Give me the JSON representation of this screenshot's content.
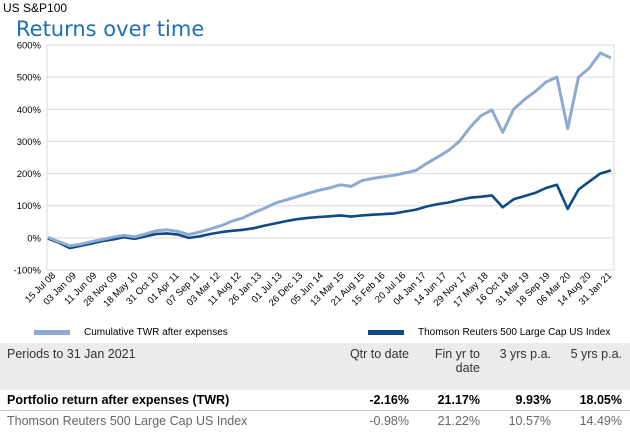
{
  "header": {
    "supertitle": "US S&P100",
    "title": "Returns over time"
  },
  "chart_data": {
    "type": "line",
    "y_ticks": [
      "600%",
      "500%",
      "400%",
      "300%",
      "200%",
      "100%",
      "0%",
      "-100%"
    ],
    "y_tick_values": [
      600,
      500,
      400,
      300,
      200,
      100,
      0,
      -100
    ],
    "ylim": [
      -100,
      600
    ],
    "grid": true,
    "legend_position": "bottom",
    "x_tick_labels": [
      "15 Jul 08",
      "03 Jan 09",
      "11 Jun 09",
      "28 Nov 09",
      "18 May 10",
      "31 Oct 10",
      "01 Apr 11",
      "07 Sep 11",
      "03 Mar 12",
      "11 Aug 12",
      "26 Jan 13",
      "01 Jul 13",
      "26 Dec 13",
      "05 Jun 14",
      "13 Mar 15",
      "21 Aug 15",
      "15 Feb 16",
      "20 Jul 16",
      "04 Jan 17",
      "14 Jun 17",
      "29 Nov 17",
      "17 May 18",
      "16 Oct 18",
      "31 Mar 19",
      "18 Sep 19",
      "06 Mar 20",
      "14 Aug 20",
      "31 Jan 21"
    ],
    "x": [
      "2008-07",
      "2008-10",
      "2009-01",
      "2009-03",
      "2009-06",
      "2009-09",
      "2009-12",
      "2010-03",
      "2010-06",
      "2010-09",
      "2010-12",
      "2011-03",
      "2011-06",
      "2011-09",
      "2011-12",
      "2012-03",
      "2012-06",
      "2012-09",
      "2012-12",
      "2013-03",
      "2013-06",
      "2013-09",
      "2013-12",
      "2014-03",
      "2014-06",
      "2014-09",
      "2014-12",
      "2015-03",
      "2015-06",
      "2015-09",
      "2015-12",
      "2016-03",
      "2016-06",
      "2016-09",
      "2016-12",
      "2017-03",
      "2017-06",
      "2017-09",
      "2017-12",
      "2018-03",
      "2018-06",
      "2018-09",
      "2018-12",
      "2019-03",
      "2019-06",
      "2019-09",
      "2019-12",
      "2020-02",
      "2020-03",
      "2020-06",
      "2020-09",
      "2020-12",
      "2021-01"
    ],
    "series": [
      {
        "name": "Cumulative TWR after expenses",
        "color": "#8eaad2",
        "values": [
          2,
          -12,
          -25,
          -20,
          -12,
          -5,
          2,
          8,
          3,
          12,
          22,
          25,
          20,
          10,
          18,
          28,
          38,
          52,
          62,
          78,
          92,
          108,
          118,
          128,
          138,
          148,
          155,
          165,
          160,
          178,
          185,
          190,
          195,
          202,
          210,
          232,
          252,
          272,
          300,
          345,
          380,
          398,
          328,
          400,
          430,
          455,
          485,
          500,
          340,
          500,
          528,
          575,
          560
        ]
      },
      {
        "name": "Thomson Reuters 500 Large Cap US Index",
        "color": "#0d4a86",
        "values": [
          -2,
          -15,
          -32,
          -25,
          -18,
          -10,
          -5,
          2,
          -3,
          5,
          12,
          14,
          10,
          0,
          5,
          12,
          18,
          22,
          25,
          30,
          38,
          45,
          52,
          58,
          62,
          65,
          67,
          70,
          66,
          70,
          72,
          74,
          76,
          82,
          88,
          98,
          105,
          110,
          118,
          125,
          128,
          132,
          95,
          120,
          130,
          140,
          155,
          165,
          90,
          150,
          175,
          200,
          210
        ]
      }
    ]
  },
  "table": {
    "headers": [
      "Periods to 31 Jan 2021",
      "Qtr to date",
      "Fin yr to date",
      "3 yrs p.a.",
      "5 yrs p.a."
    ],
    "rows": [
      [
        "Portfolio return after expenses (TWR)",
        "-2.16%",
        "21.17%",
        "9.93%",
        "18.05%"
      ],
      [
        "Thomson Reuters 500 Large Cap US Index",
        "-0.98%",
        "21.22%",
        "10.57%",
        "14.49%"
      ]
    ]
  }
}
